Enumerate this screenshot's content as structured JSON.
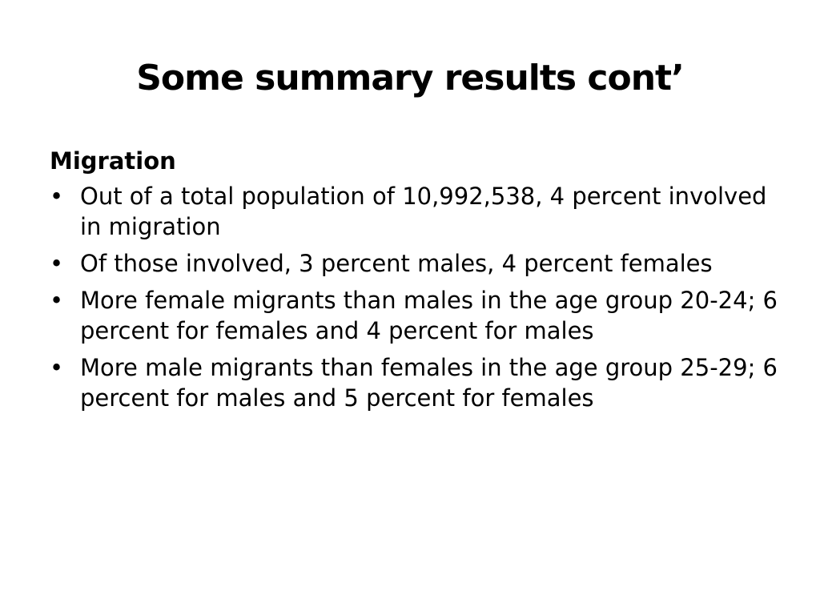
{
  "slide": {
    "title": "Some summary results cont’",
    "section_heading": "Migration",
    "bullet_symbol": "•",
    "bullets": [
      "Out of a total population of 10,992,538, 4 percent involved in migration",
      "Of those involved, 3 percent males, 4 percent females",
      "More female migrants than males in the age group 20-24; 6 percent for females and 4 percent for males",
      "More male migrants than females in the age group 25-29; 6 percent for males and 5 percent for females"
    ]
  }
}
